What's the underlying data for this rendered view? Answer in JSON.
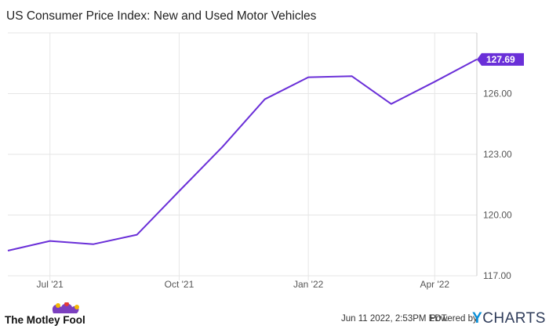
{
  "chart_data": {
    "type": "line",
    "title": "US Consumer Price Index: New and Used Motor Vehicles",
    "x_tick_labels": [
      "Jul '21",
      "Oct '21",
      "Jan '22",
      "Apr '22"
    ],
    "x": [
      "2021-06",
      "2021-07",
      "2021-08",
      "2021-09",
      "2021-10",
      "2021-11",
      "2021-12",
      "2022-01",
      "2022-02",
      "2022-03",
      "2022-04",
      "2022-05"
    ],
    "series": [
      {
        "color": "#6a2fd8",
        "values": [
          118.24,
          118.72,
          118.56,
          119.03,
          121.18,
          123.38,
          125.72,
          126.81,
          126.86,
          125.49,
          126.59,
          127.69
        ]
      }
    ],
    "last_value_label": "127.69",
    "y_tick_labels": [
      "117.00",
      "120.00",
      "123.00",
      "126.00"
    ],
    "y_ticks": [
      117,
      120,
      123,
      126
    ],
    "ylim": [
      117,
      129
    ],
    "grid": "horizontal"
  },
  "footer": {
    "date": "Jun 11 2022, 2:53PM EDT.",
    "powered_by": "Powered by",
    "brand_y": "Y",
    "brand_rest": "CHARTS",
    "source_logo": "The Motley Fool"
  },
  "colors": {
    "line": "#6a2fd8",
    "grid": "#e6e6e6",
    "ycharts_y": "#0a8fd8",
    "ycharts_text": "#2f3c5a"
  }
}
